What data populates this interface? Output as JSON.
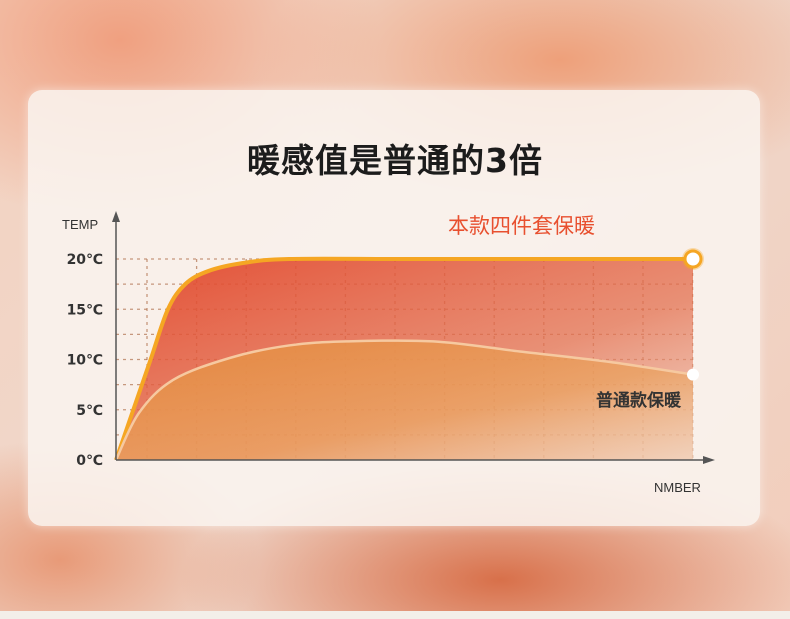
{
  "title": "暖感值是普通的3倍",
  "chart_data": {
    "type": "area",
    "title": "暖感值是普通的3倍",
    "ylabel": "TEMP",
    "xlabel": "NMBER",
    "yticks": [
      "0℃",
      "5℃",
      "10℃",
      "15℃",
      "20℃"
    ],
    "ylim": [
      0,
      20
    ],
    "xlim": [
      0,
      100
    ],
    "grid": true,
    "series": [
      {
        "name": "本款四件套保暖",
        "color": "#e8502f",
        "x": [
          0,
          3,
          6,
          9,
          12,
          16,
          22,
          30,
          50,
          75,
          100
        ],
        "y": [
          0,
          5,
          10,
          15,
          17.5,
          18.8,
          19.6,
          20,
          20,
          20,
          20
        ]
      },
      {
        "name": "普通款保暖",
        "color": "#eb9a3c",
        "x": [
          0,
          4,
          10,
          20,
          30,
          40,
          55,
          70,
          85,
          100
        ],
        "y": [
          0,
          4.7,
          8,
          10.2,
          11.4,
          11.8,
          11.8,
          10.8,
          9.8,
          8.5
        ]
      }
    ]
  },
  "colors": {
    "accent": "#f5a623",
    "title_red": "#e8502f"
  }
}
